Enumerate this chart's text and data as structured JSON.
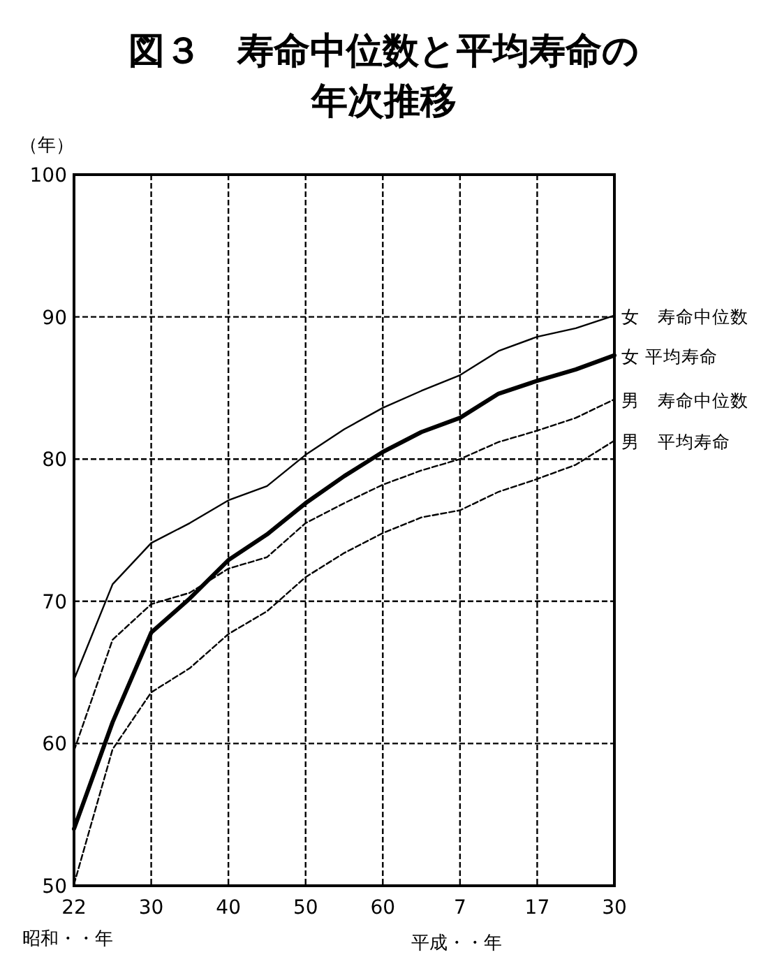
{
  "chart_data": {
    "type": "line",
    "title": "図３　寿命中位数と平均寿命の年次推移",
    "ylabel": "（年）",
    "annotations": [
      "昭和・・年",
      "平成・・年"
    ],
    "ylim": [
      50,
      100
    ],
    "categories": [
      "22",
      null,
      "30",
      null,
      "40",
      null,
      "50",
      null,
      "60",
      null,
      "7",
      null,
      "17",
      null,
      "30"
    ],
    "yticks": [
      50,
      60,
      70,
      80,
      90,
      100
    ],
    "grid": true,
    "legend": false,
    "marker": "none",
    "series": [
      {
        "name": "女　寿命中位数",
        "color": "#000000",
        "line_style": "solid",
        "values": [
          64.5,
          71.2,
          74.1,
          75.5,
          77.1,
          78.1,
          80.3,
          82.1,
          83.6,
          84.8,
          85.9,
          87.6,
          88.6,
          89.2,
          90.1
        ]
      },
      {
        "name": "女 平均寿命",
        "color": "#000000",
        "line_style": "solid",
        "values": [
          54.0,
          61.5,
          67.8,
          70.2,
          72.9,
          74.7,
          76.9,
          78.8,
          80.5,
          81.9,
          82.9,
          84.6,
          85.5,
          86.3,
          87.3
        ]
      },
      {
        "name": "男　寿命中位数",
        "color": "#000000",
        "line_style": "dashed",
        "values": [
          59.5,
          67.3,
          69.8,
          70.6,
          72.3,
          73.1,
          75.5,
          76.9,
          78.2,
          79.2,
          80.0,
          81.2,
          82.0,
          82.9,
          84.2
        ]
      },
      {
        "name": "男　平均寿命",
        "color": "#000000",
        "line_style": "dashed",
        "values": [
          50.1,
          59.6,
          63.6,
          65.3,
          67.7,
          69.3,
          71.7,
          73.4,
          74.8,
          75.9,
          76.4,
          77.7,
          78.6,
          79.6,
          81.3
        ]
      }
    ]
  }
}
